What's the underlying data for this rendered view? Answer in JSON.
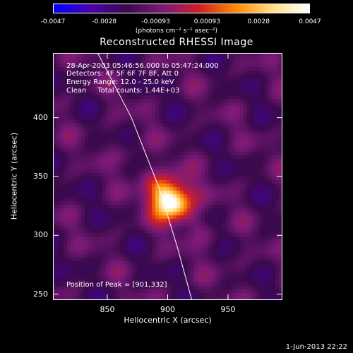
{
  "colorbar": {
    "ticks": [
      "-0.0047",
      "-0.0028",
      "-0.00093",
      "0.00093",
      "0.0028",
      "0.0047"
    ],
    "units": "(photons cm⁻² s⁻¹ asec⁻²)",
    "colors": [
      "#0000ff",
      "#4a00b0",
      "#3a0a4a",
      "#7a1a78",
      "#d01e28",
      "#ff8a00",
      "#ffe08a",
      "#ffffff"
    ]
  },
  "title": "Reconstructed RHESSI Image",
  "annotations": {
    "time_range": "28-Apr-2003 05:46:56.000 to 05:47:24.000",
    "detectors": "Detectors: 4F 5F 6F 7F 8F, Att 0",
    "energy": "Energy Range: 12.0 - 25.0 keV",
    "clean": "Clean     Total counts: 1.44E+03",
    "peak": "Position of Peak = [901,332]"
  },
  "axes": {
    "xlabel": "Heliocentric X (arcsec)",
    "ylabel": "Heliocentric Y (arcsec)",
    "xlim": [
      805,
      995
    ],
    "ylim": [
      245,
      455
    ],
    "xticks": [
      {
        "value": 850,
        "label": "850"
      },
      {
        "value": 900,
        "label": "900"
      },
      {
        "value": 950,
        "label": "950"
      }
    ],
    "yticks": [
      {
        "value": 250,
        "label": "250"
      },
      {
        "value": 300,
        "label": "300"
      },
      {
        "value": 350,
        "label": "350"
      },
      {
        "value": 400,
        "label": "400"
      }
    ]
  },
  "image": {
    "peak_x": 901,
    "peak_y": 332,
    "limb_points": [
      [
        842,
        455
      ],
      [
        870,
        400
      ],
      [
        893,
        340
      ],
      [
        908,
        290
      ],
      [
        920,
        245
      ]
    ]
  },
  "date_stamp": "1-Jun-2013 22:22"
}
